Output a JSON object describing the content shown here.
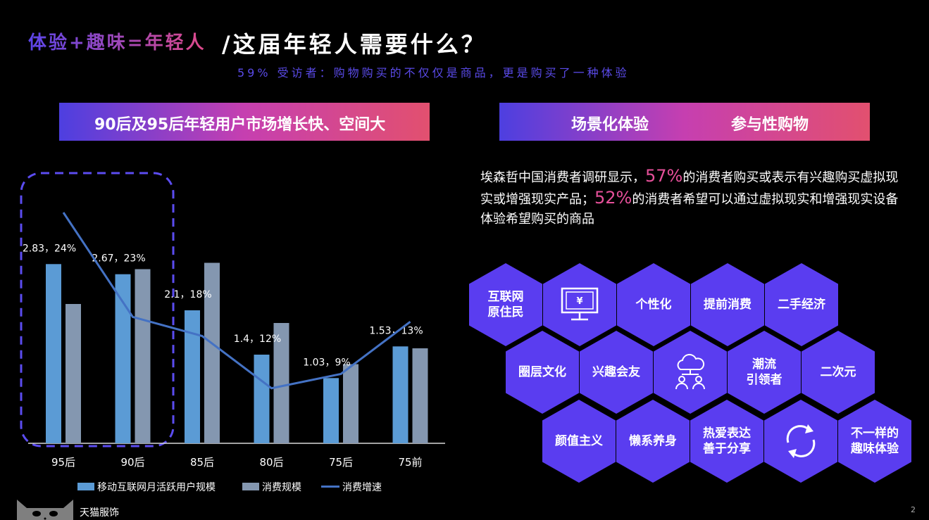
{
  "header": {
    "title_left": "体验+趣味=年轻人",
    "title_right": "/这届年轻人需要什么？",
    "subtitle": "59% 受访者：购物购买的不仅仅是商品，更是购买了一种体验"
  },
  "banner_left": {
    "label": "90后及95后年轻用户市场增长快、空间大"
  },
  "banner_right": {
    "label_1": "场景化体验",
    "label_2": "参与性购物"
  },
  "description": {
    "p1": "埃森哲中国消费者调研显示，",
    "h1": "57%",
    "p2": "的消费者购买或表示有兴趣购买虚拟现实或增强现实产品；",
    "h2": "52%",
    "p3": "的消费者希望可以通过虚拟现实和增强现实设备体验希望购买的商品"
  },
  "hexagons": {
    "items": [
      "互联网\n原住民",
      "monitor-yen-icon",
      "个性化",
      "提前消费",
      "二手经济",
      "圈层文化",
      "兴趣会友",
      "cloud-people-icon",
      "潮流\n引领者",
      "二次元",
      "颜值主义",
      "懒系养身",
      "热爱表达\n善于分享",
      "recycle-arrows-icon",
      "不一样的\n趣味体验"
    ],
    "color": "#5a3df0"
  },
  "chart_data": {
    "type": "bar",
    "categories": [
      "95后",
      "90后",
      "85后",
      "80后",
      "75后",
      "75前"
    ],
    "series": [
      {
        "name": "移动互联网月活跃用户规模",
        "values": [
          2.83,
          2.67,
          2.1,
          1.4,
          1.03,
          1.53
        ],
        "color": "#5b9bd5"
      },
      {
        "name": "消费规模",
        "values": [
          2.2,
          2.75,
          2.85,
          1.9,
          1.25,
          1.5
        ],
        "color": "#8497b0"
      },
      {
        "name": "消费增速",
        "type": "line",
        "values": [
          24,
          13,
          11,
          5.5,
          7,
          12.5
        ],
        "color": "#4472c4"
      }
    ],
    "data_labels": [
      "2.83，24%",
      "2.67，23%",
      "2.1，18%",
      "1.4，12%",
      "1.03，9%",
      "1.53，13%"
    ],
    "highlight": [
      "95后",
      "90后"
    ]
  },
  "footer": {
    "brand": "天猫服饰",
    "page": "2"
  }
}
